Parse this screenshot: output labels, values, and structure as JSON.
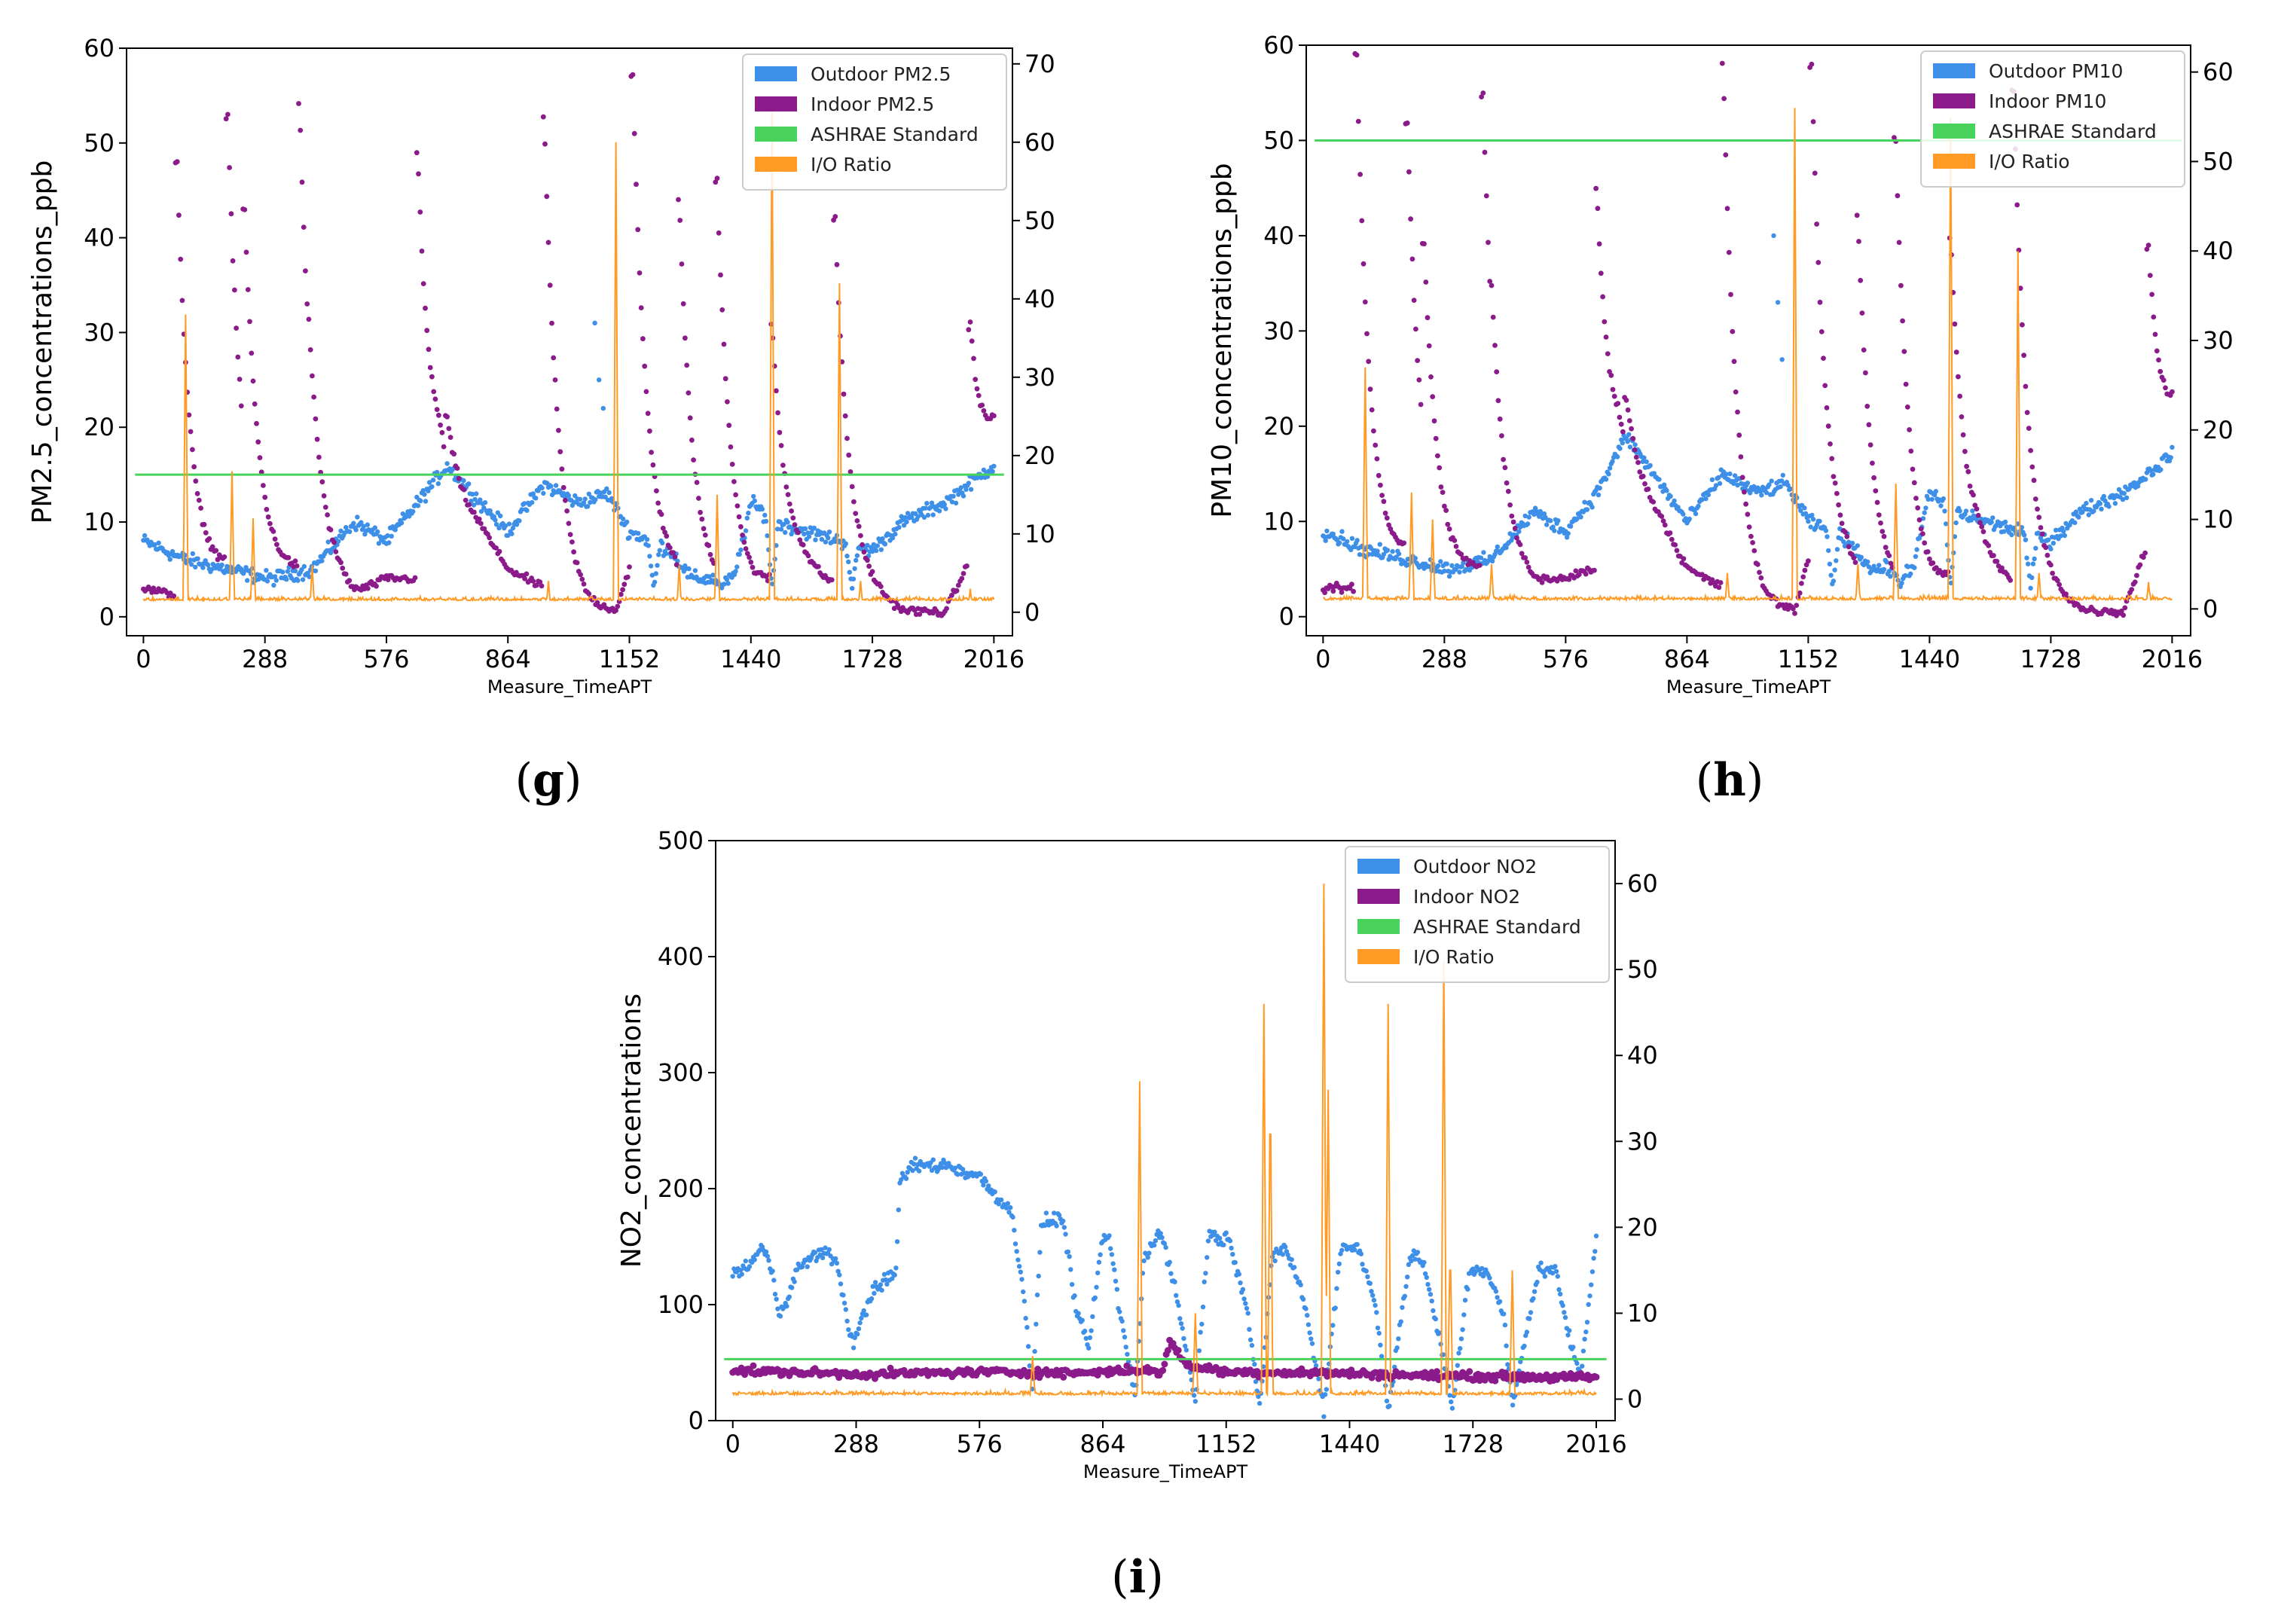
{
  "figure": {
    "captions": [
      "(g)",
      "(h)",
      "(i)"
    ],
    "caption_letters": [
      "g",
      "h",
      "i"
    ]
  },
  "colors": {
    "outdoor": "#3d8fe8",
    "indoor": "#8b1a8b",
    "standard": "#49d35c",
    "ratio": "#ff9a24",
    "axis": "#000000"
  },
  "chart_data": [
    {
      "id": "g",
      "type": "line",
      "xlabel": "Measure_TimeAPT",
      "ylabel": "PM2.5_concentrations_ppb",
      "xticks": [
        0,
        288,
        576,
        864,
        1152,
        1440,
        1728,
        2016
      ],
      "xlim": [
        -40,
        2060
      ],
      "ylim": [
        -2,
        60
      ],
      "yticks": [
        0,
        10,
        20,
        30,
        40,
        50,
        60
      ],
      "y2lim": [
        -3,
        72
      ],
      "y2ticks": [
        0,
        10,
        20,
        30,
        40,
        50,
        60,
        70
      ],
      "legend": {
        "placement": "top-right",
        "entries": [
          "Outdoor PM2.5",
          "Indoor PM2.5",
          "ASHRAE Standard",
          "I/O Ratio"
        ]
      },
      "standard": 15,
      "outdoor": {
        "base": [
          [
            0,
            8
          ],
          [
            100,
            6
          ],
          [
            200,
            5
          ],
          [
            300,
            4
          ],
          [
            400,
            5
          ],
          [
            500,
            10
          ],
          [
            576,
            8
          ],
          [
            650,
            12
          ],
          [
            720,
            16
          ],
          [
            800,
            12
          ],
          [
            864,
            9
          ],
          [
            950,
            14
          ],
          [
            1030,
            12
          ],
          [
            1100,
            13
          ],
          [
            1152,
            9
          ],
          [
            1250,
            7
          ],
          [
            1300,
            4
          ],
          [
            1400,
            4
          ],
          [
            1440,
            12
          ],
          [
            1500,
            10
          ],
          [
            1570,
            9
          ],
          [
            1650,
            8
          ],
          [
            1728,
            7
          ],
          [
            1800,
            10
          ],
          [
            1900,
            12
          ],
          [
            2016,
            16
          ]
        ],
        "spikes": [
          [
            1070,
            31
          ],
          [
            1080,
            25
          ],
          [
            1090,
            22
          ]
        ],
        "dips": [
          [
            1210,
            3
          ],
          [
            1370,
            3
          ],
          [
            1490,
            3
          ],
          [
            1680,
            3
          ]
        ]
      },
      "indoor": {
        "baseline": [
          [
            0,
            3
          ],
          [
            100,
            2
          ],
          [
            200,
            5
          ],
          [
            300,
            4
          ],
          [
            400,
            5
          ],
          [
            500,
            2
          ],
          [
            576,
            4
          ],
          [
            650,
            4
          ],
          [
            700,
            12
          ],
          [
            800,
            9
          ],
          [
            864,
            5
          ],
          [
            950,
            3
          ],
          [
            1050,
            0.5
          ],
          [
            1120,
            0.5
          ],
          [
            1152,
            5
          ],
          [
            1250,
            4
          ],
          [
            1300,
            3
          ],
          [
            1400,
            2
          ],
          [
            1440,
            2
          ],
          [
            1550,
            5
          ],
          [
            1650,
            3
          ],
          [
            1728,
            2
          ],
          [
            1800,
            0.5
          ],
          [
            1900,
            0.5
          ],
          [
            1960,
            6
          ],
          [
            2016,
            17
          ]
        ],
        "events": [
          [
            80,
            48
          ],
          [
            200,
            53
          ],
          [
            240,
            43
          ],
          [
            370,
            54
          ],
          [
            390,
            33
          ],
          [
            650,
            49
          ],
          [
            720,
            21
          ],
          [
            950,
            53
          ],
          [
            1160,
            57
          ],
          [
            1270,
            44
          ],
          [
            1360,
            46
          ],
          [
            1490,
            31
          ],
          [
            1640,
            42
          ],
          [
            1960,
            31
          ]
        ]
      },
      "ratio": {
        "baseline": 1.5,
        "spikes": [
          [
            100,
            38
          ],
          [
            210,
            18
          ],
          [
            260,
            12
          ],
          [
            400,
            6
          ],
          [
            960,
            4
          ],
          [
            1120,
            60
          ],
          [
            1270,
            6
          ],
          [
            1360,
            15
          ],
          [
            1490,
            65
          ],
          [
            1650,
            42
          ],
          [
            1700,
            4
          ],
          [
            1960,
            3
          ]
        ]
      }
    },
    {
      "id": "h",
      "type": "line",
      "xlabel": "Measure_TimeAPT",
      "ylabel": "PM10_concentrations_ppb",
      "xticks": [
        0,
        288,
        576,
        864,
        1152,
        1440,
        1728,
        2016
      ],
      "xlim": [
        -40,
        2060
      ],
      "ylim": [
        -2,
        60
      ],
      "yticks": [
        0,
        10,
        20,
        30,
        40,
        50,
        60
      ],
      "y2lim": [
        -3,
        63
      ],
      "y2ticks": [
        0,
        10,
        20,
        30,
        40,
        50,
        60
      ],
      "legend": {
        "placement": "top-right",
        "entries": [
          "Outdoor PM10",
          "Indoor PM10",
          "ASHRAE Standard",
          "I/O Ratio"
        ]
      },
      "standard": 50,
      "outdoor": {
        "base": [
          [
            0,
            9
          ],
          [
            100,
            7
          ],
          [
            200,
            6
          ],
          [
            300,
            5
          ],
          [
            400,
            6
          ],
          [
            500,
            11
          ],
          [
            576,
            9
          ],
          [
            650,
            13
          ],
          [
            720,
            19
          ],
          [
            800,
            14
          ],
          [
            864,
            10
          ],
          [
            950,
            15
          ],
          [
            1030,
            13
          ],
          [
            1100,
            14
          ],
          [
            1152,
            10
          ],
          [
            1250,
            8
          ],
          [
            1300,
            5
          ],
          [
            1400,
            5
          ],
          [
            1440,
            13
          ],
          [
            1500,
            11
          ],
          [
            1570,
            10
          ],
          [
            1650,
            9
          ],
          [
            1728,
            8
          ],
          [
            1800,
            11
          ],
          [
            1900,
            13
          ],
          [
            2016,
            17
          ]
        ],
        "spikes": [
          [
            1070,
            40
          ],
          [
            1080,
            33
          ],
          [
            1090,
            27
          ]
        ],
        "dips": [
          [
            1210,
            3
          ],
          [
            1370,
            3
          ],
          [
            1490,
            3
          ],
          [
            1680,
            3
          ]
        ]
      },
      "indoor": {
        "baseline": [
          [
            0,
            3
          ],
          [
            100,
            3
          ],
          [
            200,
            6
          ],
          [
            300,
            4
          ],
          [
            400,
            5
          ],
          [
            500,
            3
          ],
          [
            576,
            4
          ],
          [
            650,
            5
          ],
          [
            700,
            14
          ],
          [
            800,
            10
          ],
          [
            864,
            5
          ],
          [
            950,
            3
          ],
          [
            1050,
            0.5
          ],
          [
            1120,
            0.5
          ],
          [
            1152,
            6
          ],
          [
            1250,
            4
          ],
          [
            1300,
            3
          ],
          [
            1400,
            2
          ],
          [
            1440,
            2
          ],
          [
            1550,
            6
          ],
          [
            1650,
            3
          ],
          [
            1728,
            2
          ],
          [
            1800,
            0.5
          ],
          [
            1900,
            0.5
          ],
          [
            1960,
            8
          ],
          [
            2016,
            18
          ]
        ],
        "events": [
          [
            80,
            59
          ],
          [
            200,
            52
          ],
          [
            240,
            39
          ],
          [
            380,
            55
          ],
          [
            400,
            35
          ],
          [
            650,
            45
          ],
          [
            720,
            23
          ],
          [
            950,
            58
          ],
          [
            1160,
            58
          ],
          [
            1270,
            42
          ],
          [
            1360,
            50
          ],
          [
            1490,
            40
          ],
          [
            1640,
            55
          ],
          [
            1960,
            39
          ]
        ]
      },
      "ratio": {
        "baseline": 1,
        "spikes": [
          [
            100,
            27
          ],
          [
            210,
            13
          ],
          [
            260,
            10
          ],
          [
            400,
            5
          ],
          [
            960,
            4
          ],
          [
            1120,
            56
          ],
          [
            1270,
            5
          ],
          [
            1360,
            14
          ],
          [
            1490,
            55
          ],
          [
            1650,
            40
          ],
          [
            1700,
            4
          ],
          [
            1960,
            3
          ]
        ]
      }
    },
    {
      "id": "i",
      "type": "line",
      "xlabel": "Measure_TimeAPT",
      "ylabel": "NO2_concentrations",
      "xticks": [
        0,
        288,
        576,
        864,
        1152,
        1440,
        1728,
        2016
      ],
      "xlim": [
        -40,
        2060
      ],
      "ylim": [
        0,
        500
      ],
      "yticks": [
        0,
        100,
        200,
        300,
        400,
        500
      ],
      "y2lim": [
        -2.5,
        65
      ],
      "y2ticks": [
        0,
        10,
        20,
        30,
        40,
        50,
        60
      ],
      "legend": {
        "placement": "top-right",
        "entries": [
          "Outdoor NO2",
          "Indoor NO2",
          "ASHRAE Standard",
          "I/O Ratio"
        ]
      },
      "standard": 53,
      "outdoor": {
        "base": [
          [
            0,
            125
          ],
          [
            40,
            135
          ],
          [
            70,
            150
          ],
          [
            90,
            130
          ],
          [
            110,
            90
          ],
          [
            150,
            130
          ],
          [
            200,
            145
          ],
          [
            240,
            140
          ],
          [
            280,
            65
          ],
          [
            330,
            115
          ],
          [
            380,
            125
          ],
          [
            390,
            205
          ],
          [
            420,
            220
          ],
          [
            500,
            220
          ],
          [
            576,
            210
          ],
          [
            650,
            180
          ],
          [
            680,
            110
          ],
          [
            700,
            20
          ],
          [
            720,
            170
          ],
          [
            770,
            175
          ],
          [
            800,
            100
          ],
          [
            830,
            60
          ],
          [
            860,
            150
          ],
          [
            880,
            160
          ],
          [
            900,
            100
          ],
          [
            940,
            20
          ],
          [
            960,
            140
          ],
          [
            1000,
            165
          ],
          [
            1040,
            100
          ],
          [
            1080,
            15
          ],
          [
            1110,
            160
          ],
          [
            1160,
            155
          ],
          [
            1200,
            100
          ],
          [
            1230,
            10
          ],
          [
            1260,
            140
          ],
          [
            1290,
            150
          ],
          [
            1330,
            110
          ],
          [
            1380,
            10
          ],
          [
            1420,
            150
          ],
          [
            1460,
            150
          ],
          [
            1500,
            100
          ],
          [
            1530,
            10
          ],
          [
            1580,
            140
          ],
          [
            1610,
            140
          ],
          [
            1650,
            70
          ],
          [
            1680,
            10
          ],
          [
            1720,
            130
          ],
          [
            1760,
            130
          ],
          [
            1800,
            90
          ],
          [
            1820,
            10
          ],
          [
            1880,
            130
          ],
          [
            1920,
            130
          ],
          [
            1960,
            60
          ],
          [
            1980,
            40
          ],
          [
            2016,
            160
          ]
        ]
      },
      "indoor": {
        "baseline": [
          [
            0,
            43
          ],
          [
            300,
            40
          ],
          [
            600,
            42
          ],
          [
            800,
            41
          ],
          [
            960,
            44
          ],
          [
            1000,
            40
          ],
          [
            1020,
            68
          ],
          [
            1060,
            48
          ],
          [
            1152,
            42
          ],
          [
            1400,
            41
          ],
          [
            1600,
            39
          ],
          [
            1800,
            38
          ],
          [
            2016,
            37
          ]
        ],
        "events": []
      },
      "ratio": {
        "baseline": 0.5,
        "spikes": [
          [
            700,
            5
          ],
          [
            950,
            37
          ],
          [
            1080,
            10
          ],
          [
            1240,
            46
          ],
          [
            1255,
            37
          ],
          [
            1380,
            60
          ],
          [
            1390,
            36
          ],
          [
            1530,
            46
          ],
          [
            1660,
            51
          ],
          [
            1675,
            18
          ],
          [
            1820,
            15
          ]
        ]
      }
    }
  ]
}
